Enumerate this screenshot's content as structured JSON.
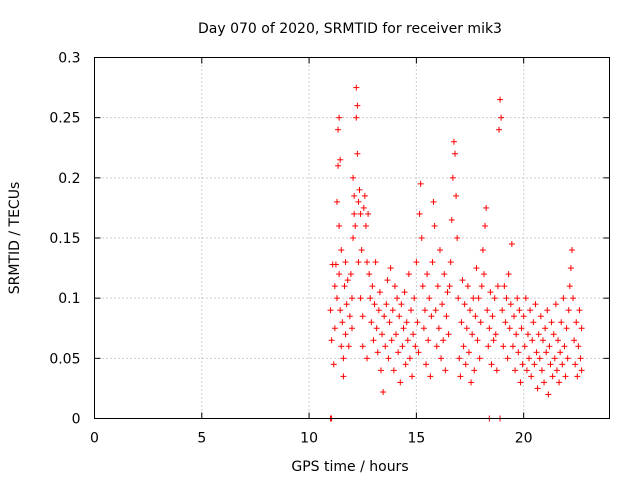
{
  "chart_data": {
    "type": "scatter",
    "title": "Day 070 of 2020, SRMTID for receiver mik3",
    "xlabel": "GPS time / hours",
    "ylabel": "SRMTID / TECUs",
    "xlim": [
      0,
      24
    ],
    "ylim": [
      0,
      0.3
    ],
    "xticks": [
      0,
      5,
      10,
      15,
      20
    ],
    "xtick_labels": [
      "0",
      "5",
      "10",
      "15",
      "20"
    ],
    "yticks": [
      0,
      0.05,
      0.1,
      0.15,
      0.2,
      0.25,
      0.3
    ],
    "ytick_labels": [
      "0",
      "0.05",
      "0.1",
      "0.15",
      "0.2",
      "0.25",
      "0.3"
    ],
    "grid": true,
    "marker": "+",
    "color": "#ff0000",
    "series": [
      {
        "name": "SRMTID",
        "points": [
          [
            11.0,
            0.0
          ],
          [
            11.05,
            0.0
          ],
          [
            18.4,
            0.0
          ],
          [
            18.9,
            0.0
          ],
          [
            11.0,
            0.09
          ],
          [
            11.05,
            0.065
          ],
          [
            11.1,
            0.128
          ],
          [
            11.15,
            0.045
          ],
          [
            11.2,
            0.075
          ],
          [
            11.2,
            0.11
          ],
          [
            11.25,
            0.128
          ],
          [
            11.3,
            0.1
          ],
          [
            11.3,
            0.18
          ],
          [
            11.35,
            0.21
          ],
          [
            11.35,
            0.24
          ],
          [
            11.4,
            0.25
          ],
          [
            11.4,
            0.16
          ],
          [
            11.4,
            0.12
          ],
          [
            11.45,
            0.215
          ],
          [
            11.45,
            0.09
          ],
          [
            11.5,
            0.14
          ],
          [
            11.5,
            0.06
          ],
          [
            11.55,
            0.08
          ],
          [
            11.6,
            0.05
          ],
          [
            11.6,
            0.035
          ],
          [
            11.65,
            0.11
          ],
          [
            11.7,
            0.13
          ],
          [
            11.7,
            0.07
          ],
          [
            11.75,
            0.095
          ],
          [
            11.8,
            0.115
          ],
          [
            11.85,
            0.06
          ],
          [
            11.9,
            0.085
          ],
          [
            11.95,
            0.12
          ],
          [
            12.0,
            0.075
          ],
          [
            12.0,
            0.1
          ],
          [
            12.05,
            0.15
          ],
          [
            12.05,
            0.2
          ],
          [
            12.1,
            0.17
          ],
          [
            12.1,
            0.185
          ],
          [
            12.15,
            0.16
          ],
          [
            12.2,
            0.25
          ],
          [
            12.2,
            0.275
          ],
          [
            12.25,
            0.26
          ],
          [
            12.25,
            0.22
          ],
          [
            12.3,
            0.18
          ],
          [
            12.3,
            0.13
          ],
          [
            12.35,
            0.19
          ],
          [
            12.4,
            0.17
          ],
          [
            12.4,
            0.1
          ],
          [
            12.45,
            0.14
          ],
          [
            12.5,
            0.085
          ],
          [
            12.5,
            0.06
          ],
          [
            12.55,
            0.175
          ],
          [
            12.6,
            0.185
          ],
          [
            12.65,
            0.16
          ],
          [
            12.7,
            0.13
          ],
          [
            12.7,
            0.05
          ],
          [
            12.75,
            0.17
          ],
          [
            12.8,
            0.12
          ],
          [
            12.85,
            0.1
          ],
          [
            12.9,
            0.08
          ],
          [
            12.95,
            0.11
          ],
          [
            13.0,
            0.065
          ],
          [
            13.05,
            0.095
          ],
          [
            13.1,
            0.13
          ],
          [
            13.15,
            0.075
          ],
          [
            13.2,
            0.055
          ],
          [
            13.25,
            0.09
          ],
          [
            13.3,
            0.105
          ],
          [
            13.35,
            0.04
          ],
          [
            13.4,
            0.07
          ],
          [
            13.45,
            0.022
          ],
          [
            13.5,
            0.085
          ],
          [
            13.55,
            0.06
          ],
          [
            13.6,
            0.095
          ],
          [
            13.65,
            0.115
          ],
          [
            13.7,
            0.05
          ],
          [
            13.75,
            0.08
          ],
          [
            13.8,
            0.125
          ],
          [
            13.85,
            0.065
          ],
          [
            13.9,
            0.09
          ],
          [
            13.95,
            0.04
          ],
          [
            14.0,
            0.11
          ],
          [
            14.05,
            0.07
          ],
          [
            14.1,
            0.1
          ],
          [
            14.15,
            0.055
          ],
          [
            14.2,
            0.085
          ],
          [
            14.25,
            0.03
          ],
          [
            14.3,
            0.095
          ],
          [
            14.35,
            0.06
          ],
          [
            14.4,
            0.075
          ],
          [
            14.45,
            0.105
          ],
          [
            14.5,
            0.045
          ],
          [
            14.55,
            0.08
          ],
          [
            14.6,
            0.065
          ],
          [
            14.65,
            0.12
          ],
          [
            14.7,
            0.05
          ],
          [
            14.75,
            0.09
          ],
          [
            14.8,
            0.035
          ],
          [
            14.85,
            0.07
          ],
          [
            14.9,
            0.1
          ],
          [
            14.95,
            0.06
          ],
          [
            15.0,
            0.13
          ],
          [
            15.05,
            0.08
          ],
          [
            15.1,
            0.055
          ],
          [
            15.15,
            0.17
          ],
          [
            15.2,
            0.195
          ],
          [
            15.25,
            0.15
          ],
          [
            15.3,
            0.11
          ],
          [
            15.35,
            0.075
          ],
          [
            15.4,
            0.09
          ],
          [
            15.45,
            0.045
          ],
          [
            15.5,
            0.12
          ],
          [
            15.55,
            0.065
          ],
          [
            15.6,
            0.1
          ],
          [
            15.65,
            0.035
          ],
          [
            15.7,
            0.085
          ],
          [
            15.75,
            0.13
          ],
          [
            15.8,
            0.18
          ],
          [
            15.85,
            0.16
          ],
          [
            15.9,
            0.09
          ],
          [
            15.95,
            0.06
          ],
          [
            16.0,
            0.11
          ],
          [
            16.05,
            0.075
          ],
          [
            16.1,
            0.14
          ],
          [
            16.15,
            0.05
          ],
          [
            16.2,
            0.095
          ],
          [
            16.25,
            0.065
          ],
          [
            16.3,
            0.12
          ],
          [
            16.35,
            0.04
          ],
          [
            16.4,
            0.085
          ],
          [
            16.45,
            0.105
          ],
          [
            16.5,
            0.07
          ],
          [
            16.55,
            0.11
          ],
          [
            16.6,
            0.13
          ],
          [
            16.65,
            0.165
          ],
          [
            16.7,
            0.2
          ],
          [
            16.75,
            0.23
          ],
          [
            16.8,
            0.22
          ],
          [
            16.85,
            0.185
          ],
          [
            16.9,
            0.15
          ],
          [
            16.95,
            0.1
          ],
          [
            17.0,
            0.05
          ],
          [
            17.05,
            0.035
          ],
          [
            17.1,
            0.08
          ],
          [
            17.15,
            0.115
          ],
          [
            17.2,
            0.06
          ],
          [
            17.25,
            0.095
          ],
          [
            17.3,
            0.045
          ],
          [
            17.35,
            0.075
          ],
          [
            17.4,
            0.11
          ],
          [
            17.45,
            0.055
          ],
          [
            17.5,
            0.09
          ],
          [
            17.55,
            0.03
          ],
          [
            17.6,
            0.07
          ],
          [
            17.65,
            0.1
          ],
          [
            17.7,
            0.04
          ],
          [
            17.75,
            0.085
          ],
          [
            17.8,
            0.125
          ],
          [
            17.85,
            0.065
          ],
          [
            17.9,
            0.1
          ],
          [
            17.95,
            0.05
          ],
          [
            18.0,
            0.08
          ],
          [
            18.05,
            0.11
          ],
          [
            18.1,
            0.14
          ],
          [
            18.15,
            0.12
          ],
          [
            18.2,
            0.16
          ],
          [
            18.25,
            0.175
          ],
          [
            18.3,
            0.09
          ],
          [
            18.35,
            0.06
          ],
          [
            18.4,
            0.075
          ],
          [
            18.45,
            0.105
          ],
          [
            18.5,
            0.045
          ],
          [
            18.55,
            0.085
          ],
          [
            18.6,
            0.065
          ],
          [
            18.65,
            0.1
          ],
          [
            18.7,
            0.07
          ],
          [
            18.75,
            0.04
          ],
          [
            18.8,
            0.11
          ],
          [
            18.85,
            0.24
          ],
          [
            18.9,
            0.265
          ],
          [
            18.95,
            0.25
          ],
          [
            19.0,
            0.09
          ],
          [
            19.05,
            0.06
          ],
          [
            19.1,
            0.11
          ],
          [
            19.15,
            0.08
          ],
          [
            19.2,
            0.1
          ],
          [
            19.25,
            0.05
          ],
          [
            19.3,
            0.12
          ],
          [
            19.35,
            0.075
          ],
          [
            19.4,
            0.095
          ],
          [
            19.45,
            0.145
          ],
          [
            19.5,
            0.06
          ],
          [
            19.55,
            0.085
          ],
          [
            19.6,
            0.04
          ],
          [
            19.65,
            0.07
          ],
          [
            19.7,
            0.1
          ],
          [
            19.75,
            0.055
          ],
          [
            19.8,
            0.09
          ],
          [
            19.85,
            0.03
          ],
          [
            19.9,
            0.075
          ],
          [
            19.95,
            0.045
          ],
          [
            20.0,
            0.085
          ],
          [
            20.05,
            0.06
          ],
          [
            20.1,
            0.1
          ],
          [
            20.15,
            0.04
          ],
          [
            20.2,
            0.07
          ],
          [
            20.25,
            0.05
          ],
          [
            20.3,
            0.09
          ],
          [
            20.35,
            0.035
          ],
          [
            20.4,
            0.065
          ],
          [
            20.45,
            0.08
          ],
          [
            20.5,
            0.045
          ],
          [
            20.55,
            0.095
          ],
          [
            20.6,
            0.055
          ],
          [
            20.65,
            0.025
          ],
          [
            20.7,
            0.07
          ],
          [
            20.75,
            0.05
          ],
          [
            20.8,
            0.085
          ],
          [
            20.85,
            0.04
          ],
          [
            20.9,
            0.065
          ],
          [
            20.95,
            0.03
          ],
          [
            21.0,
            0.075
          ],
          [
            21.05,
            0.055
          ],
          [
            21.1,
            0.09
          ],
          [
            21.15,
            0.02
          ],
          [
            21.2,
            0.06
          ],
          [
            21.25,
            0.045
          ],
          [
            21.3,
            0.08
          ],
          [
            21.35,
            0.035
          ],
          [
            21.4,
            0.07
          ],
          [
            21.45,
            0.05
          ],
          [
            21.5,
            0.095
          ],
          [
            21.55,
            0.04
          ],
          [
            21.6,
            0.065
          ],
          [
            21.65,
            0.03
          ],
          [
            21.7,
            0.055
          ],
          [
            21.75,
            0.08
          ],
          [
            21.8,
            0.045
          ],
          [
            21.85,
            0.1
          ],
          [
            21.9,
            0.06
          ],
          [
            21.95,
            0.035
          ],
          [
            22.0,
            0.075
          ],
          [
            22.05,
            0.05
          ],
          [
            22.1,
            0.09
          ],
          [
            22.15,
            0.11
          ],
          [
            22.2,
            0.125
          ],
          [
            22.25,
            0.14
          ],
          [
            22.3,
            0.1
          ],
          [
            22.35,
            0.065
          ],
          [
            22.4,
            0.045
          ],
          [
            22.45,
            0.08
          ],
          [
            22.5,
            0.035
          ],
          [
            22.55,
            0.06
          ],
          [
            22.6,
            0.09
          ],
          [
            22.65,
            0.05
          ],
          [
            22.7,
            0.075
          ],
          [
            22.7,
            0.04
          ]
        ]
      }
    ]
  }
}
